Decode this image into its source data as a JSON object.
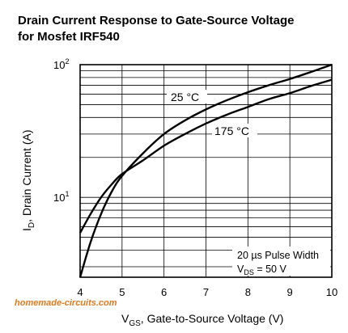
{
  "chart_data": {
    "type": "line",
    "title_line1": "Drain Current Response to Gate-Source Voltage",
    "title_line2": "for Mosfet IRF540",
    "xlabel": {
      "main": "V",
      "sub": "GS",
      "rest": ", Gate-to-Source Voltage (V)"
    },
    "ylabel": {
      "main": "I",
      "sub": "D",
      "rest": ", Drain Current (A)"
    },
    "xlim": [
      4,
      10
    ],
    "ylim": [
      2.5,
      100
    ],
    "yscale": "log",
    "x_ticks": [
      4,
      5,
      6,
      7,
      8,
      9,
      10
    ],
    "y_tick_labels": [
      {
        "value": 10,
        "base": "10",
        "exp": "1"
      },
      {
        "value": 100,
        "base": "10",
        "exp": "2"
      }
    ],
    "grid": true,
    "series": [
      {
        "name": "25 °C",
        "points": [
          [
            4,
            2.5
          ],
          [
            4.25,
            4.6
          ],
          [
            4.5,
            7.5
          ],
          [
            4.75,
            11
          ],
          [
            5,
            14.5
          ],
          [
            5.5,
            21.5
          ],
          [
            6,
            30
          ],
          [
            6.5,
            38
          ],
          [
            7,
            46
          ],
          [
            7.5,
            54
          ],
          [
            8,
            62
          ],
          [
            8.5,
            70
          ],
          [
            9,
            78
          ],
          [
            9.5,
            88
          ],
          [
            10,
            100
          ]
        ]
      },
      {
        "name": "175 °C",
        "points": [
          [
            4,
            5.4
          ],
          [
            4.25,
            7.5
          ],
          [
            4.5,
            10
          ],
          [
            4.75,
            12.5
          ],
          [
            5,
            15
          ],
          [
            5.5,
            19
          ],
          [
            6,
            24.5
          ],
          [
            6.5,
            30
          ],
          [
            7,
            36
          ],
          [
            7.5,
            42
          ],
          [
            8,
            48
          ],
          [
            8.5,
            55
          ],
          [
            9,
            61
          ],
          [
            9.5,
            69
          ],
          [
            10,
            77
          ]
        ]
      }
    ],
    "annotation_line1": "20 µs Pulse Width",
    "annotation_line2": {
      "main": "V",
      "sub": "DS",
      "rest": " = 50 V"
    }
  },
  "watermark": "homemade-circuits.com"
}
